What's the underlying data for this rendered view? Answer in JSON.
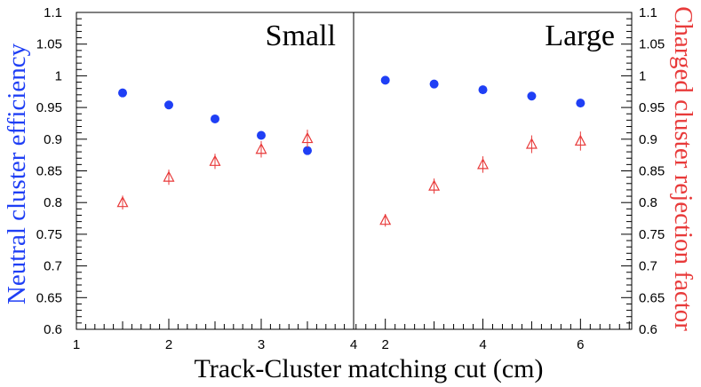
{
  "chart_data": {
    "type": "scatter",
    "xlabel": "Track-Cluster matching cut (cm)",
    "ylabel_left": "Neutral cluster efficiency",
    "ylabel_right": "Charged cluster rejection factor",
    "ylim": [
      0.6,
      1.1
    ],
    "yticks": [
      "0.6",
      "0.65",
      "0.7",
      "0.75",
      "0.8",
      "0.85",
      "0.9",
      "0.95",
      "1",
      "1.05",
      "1.1"
    ],
    "colors": {
      "neutral": "#1f3ff5",
      "charged": "#e83a3a"
    },
    "panels": [
      {
        "title": "Small",
        "xlim": [
          1,
          4
        ],
        "xticks": [
          "1",
          "2",
          "3",
          "4"
        ],
        "series": [
          {
            "key": "neutral",
            "marker": "filled-circle",
            "x": [
              1.5,
              2.0,
              2.5,
              3.0,
              3.5
            ],
            "y": [
              0.973,
              0.954,
              0.932,
              0.906,
              0.882
            ]
          },
          {
            "key": "charged",
            "marker": "open-triangle",
            "x": [
              1.5,
              2.0,
              2.5,
              3.0,
              3.5
            ],
            "y": [
              0.8,
              0.84,
              0.865,
              0.884,
              0.901
            ],
            "yerr": [
              0.011,
              0.012,
              0.012,
              0.013,
              0.014
            ]
          }
        ]
      },
      {
        "title": "Large",
        "xlim": [
          1.35,
          7.05
        ],
        "xticks": [
          "2",
          "4",
          "6"
        ],
        "series": [
          {
            "key": "neutral",
            "marker": "filled-circle",
            "x": [
              2,
              3,
              4,
              5,
              6
            ],
            "y": [
              0.993,
              0.987,
              0.978,
              0.968,
              0.957
            ]
          },
          {
            "key": "charged",
            "marker": "open-triangle",
            "x": [
              2,
              3,
              4,
              5,
              6
            ],
            "y": [
              0.772,
              0.826,
              0.86,
              0.892,
              0.897
            ],
            "yerr": [
              0.01,
              0.012,
              0.013,
              0.014,
              0.015
            ]
          }
        ]
      }
    ]
  }
}
